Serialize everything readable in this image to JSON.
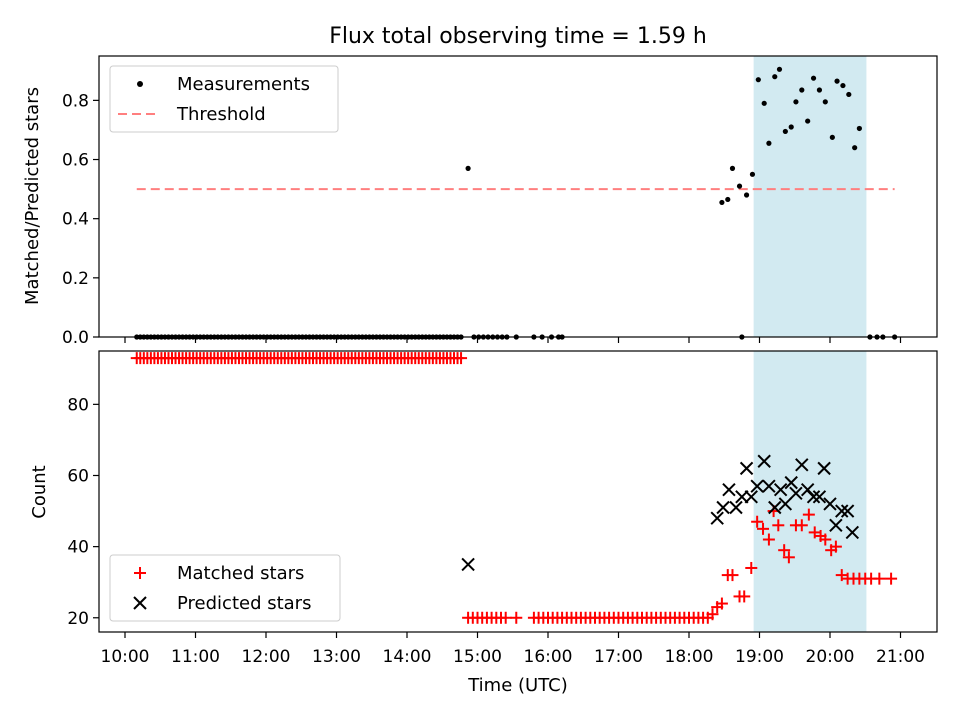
{
  "chart_data": [
    {
      "type": "scatter",
      "title": "Flux total observing time = 1.59 h",
      "xlabel": "",
      "ylabel": "Matched/Predicted stars",
      "xlim": [
        "10:00",
        "21:00"
      ],
      "ylim": [
        0,
        0.95
      ],
      "yticks": [
        0.0,
        0.2,
        0.4,
        0.6,
        0.8
      ],
      "ytick_labels": [
        "0.0",
        "0.2",
        "0.4",
        "0.6",
        "0.8"
      ],
      "highlight_span": {
        "x_start": "18:55",
        "x_end": "20:31",
        "color": "#add8e6"
      },
      "threshold": {
        "y": 0.5,
        "x_start": "10:10",
        "x_end": "20:55",
        "color": "#ff7f7f",
        "style": "dashed"
      },
      "legend": {
        "position": "upper left",
        "entries": [
          {
            "label": "Measurements",
            "marker": "dot",
            "color": "#000000"
          },
          {
            "label": "Threshold",
            "marker": "dashed-line",
            "color": "#ff7f7f"
          }
        ]
      },
      "series": [
        {
          "name": "Measurements",
          "marker": "dot",
          "color": "#000000",
          "zero_runs": [
            {
              "start": "10:10",
              "end": "14:48",
              "step_min": 3
            },
            {
              "start": "14:57",
              "end": "15:25",
              "step_min": 4
            }
          ],
          "points": [
            [
              "14:52",
              0.57
            ],
            [
              "15:33",
              0.0
            ],
            [
              "15:48",
              0.0
            ],
            [
              "15:55",
              0.0
            ],
            [
              "16:03",
              0.0
            ],
            [
              "16:09",
              0.0
            ],
            [
              "16:12",
              0.0
            ],
            [
              "18:45",
              0.0
            ],
            [
              "20:34",
              0.0
            ],
            [
              "20:40",
              0.0
            ],
            [
              "20:45",
              0.0
            ],
            [
              "20:55",
              0.0
            ],
            [
              "18:28",
              0.455
            ],
            [
              "18:33",
              0.465
            ],
            [
              "18:37",
              0.57
            ],
            [
              "18:43",
              0.51
            ],
            [
              "18:49",
              0.48
            ],
            [
              "18:54",
              0.55
            ],
            [
              "18:59",
              0.87
            ],
            [
              "19:04",
              0.79
            ],
            [
              "19:08",
              0.655
            ],
            [
              "19:13",
              0.88
            ],
            [
              "19:17",
              0.905
            ],
            [
              "19:22",
              0.695
            ],
            [
              "19:27",
              0.71
            ],
            [
              "19:31",
              0.795
            ],
            [
              "19:36",
              0.835
            ],
            [
              "19:41",
              0.73
            ],
            [
              "19:46",
              0.875
            ],
            [
              "19:51",
              0.835
            ],
            [
              "19:56",
              0.795
            ],
            [
              "20:02",
              0.675
            ],
            [
              "20:06",
              0.865
            ],
            [
              "20:11",
              0.85
            ],
            [
              "20:16",
              0.82
            ],
            [
              "20:21",
              0.64
            ],
            [
              "20:25",
              0.705
            ]
          ]
        }
      ]
    },
    {
      "type": "scatter",
      "title": "",
      "xlabel": "Time (UTC)",
      "ylabel": "Count",
      "xlim": [
        "10:00",
        "21:00"
      ],
      "ylim": [
        16,
        95
      ],
      "yticks": [
        20,
        40,
        60,
        80
      ],
      "xtick_labels": [
        "10:00",
        "11:00",
        "12:00",
        "13:00",
        "14:00",
        "15:00",
        "16:00",
        "17:00",
        "18:00",
        "19:00",
        "20:00",
        "21:00"
      ],
      "highlight_span": {
        "x_start": "18:55",
        "x_end": "20:31",
        "color": "#add8e6"
      },
      "legend": {
        "position": "lower left",
        "entries": [
          {
            "label": "Matched stars",
            "marker": "plus",
            "color": "#ff0000"
          },
          {
            "label": "Predicted stars",
            "marker": "x",
            "color": "#000000"
          }
        ]
      },
      "series": [
        {
          "name": "Matched stars",
          "marker": "plus",
          "color": "#ff0000",
          "runs": [
            {
              "start": "10:10",
              "end": "14:48",
              "step_min": 3,
              "value": 93
            },
            {
              "start": "14:52",
              "end": "15:25",
              "step_min": 4,
              "value": 20
            },
            {
              "start": "15:48",
              "end": "18:18",
              "step_min": 4,
              "value": 20
            }
          ],
          "points": [
            [
              "15:33",
              20
            ],
            [
              "18:20",
              21
            ],
            [
              "18:24",
              23
            ],
            [
              "18:28",
              24
            ],
            [
              "18:33",
              32
            ],
            [
              "18:37",
              32
            ],
            [
              "18:43",
              26
            ],
            [
              "18:47",
              26
            ],
            [
              "18:53",
              34
            ],
            [
              "18:58",
              47
            ],
            [
              "19:03",
              45
            ],
            [
              "19:08",
              42
            ],
            [
              "19:12",
              50
            ],
            [
              "19:16",
              46
            ],
            [
              "19:21",
              39
            ],
            [
              "19:25",
              37
            ],
            [
              "19:31",
              46
            ],
            [
              "19:36",
              46
            ],
            [
              "19:42",
              49
            ],
            [
              "19:47",
              44
            ],
            [
              "19:52",
              43
            ],
            [
              "19:56",
              42
            ],
            [
              "20:01",
              39
            ],
            [
              "20:05",
              40
            ],
            [
              "20:10",
              32
            ],
            [
              "20:15",
              31
            ],
            [
              "20:20",
              31
            ],
            [
              "20:25",
              31
            ],
            [
              "20:30",
              31
            ],
            [
              "20:35",
              31
            ],
            [
              "20:42",
              31
            ],
            [
              "20:52",
              31
            ]
          ]
        },
        {
          "name": "Predicted stars",
          "marker": "x",
          "color": "#000000",
          "points": [
            [
              "14:52",
              35
            ],
            [
              "18:24",
              48
            ],
            [
              "18:29",
              51
            ],
            [
              "18:34",
              56
            ],
            [
              "18:40",
              51
            ],
            [
              "18:45",
              54
            ],
            [
              "18:49",
              62
            ],
            [
              "18:53",
              54
            ],
            [
              "18:58",
              57
            ],
            [
              "19:04",
              64
            ],
            [
              "19:08",
              57
            ],
            [
              "19:13",
              51
            ],
            [
              "19:18",
              56
            ],
            [
              "19:22",
              52
            ],
            [
              "19:27",
              58
            ],
            [
              "19:31",
              55
            ],
            [
              "19:36",
              63
            ],
            [
              "19:41",
              56
            ],
            [
              "19:46",
              54
            ],
            [
              "19:51",
              54
            ],
            [
              "19:55",
              62
            ],
            [
              "20:00",
              52
            ],
            [
              "20:05",
              46
            ],
            [
              "20:10",
              50
            ],
            [
              "20:15",
              50
            ],
            [
              "20:19",
              44
            ]
          ]
        }
      ]
    }
  ]
}
